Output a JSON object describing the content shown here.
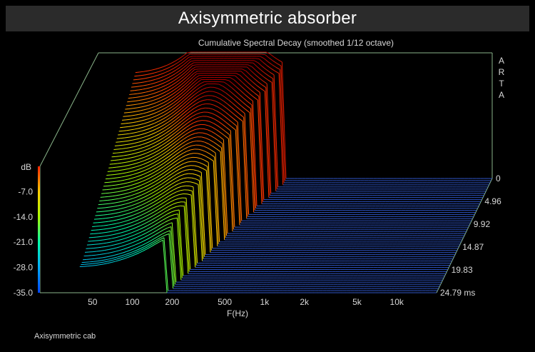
{
  "banner_title": "Axisymmetric absorber",
  "footer_label": "Axisymmetric cab",
  "watermark": [
    "A",
    "R",
    "T",
    "A"
  ],
  "chart_data": {
    "type": "waterfall",
    "title": "Cumulative Spectral Decay (smoothed 1/12 octave)",
    "xlabel": "F(Hz)",
    "ylabel": "dB",
    "x_scale": "log",
    "xlim": [
      20,
      20000
    ],
    "x_ticks": [
      50,
      100,
      200,
      500,
      1000,
      2000,
      5000,
      10000
    ],
    "x_tick_labels": [
      "50",
      "100",
      "200",
      "500",
      "1k",
      "2k",
      "5k",
      "10k"
    ],
    "ylim": [
      -35,
      0
    ],
    "y_ticks": [
      -7,
      -14,
      -21,
      -28,
      -35
    ],
    "y_tick_labels": [
      "-7.0",
      "-14.0",
      "-21.0",
      "-28.0",
      "-35.0"
    ],
    "time_unit": "ms",
    "time_range": [
      0,
      24.79
    ],
    "time_ticks": [
      0,
      4.96,
      9.92,
      14.87,
      19.83,
      24.79
    ],
    "time_tick_labels": [
      "0",
      "4.96",
      "9.92",
      "14.87",
      "19.83",
      "24.79 ms"
    ],
    "resonance_peak_hz": 200,
    "colormap": [
      "#0044ff",
      "#00aaff",
      "#00ffaa",
      "#aaff00",
      "#ffcc00",
      "#ff3300",
      "#b00000"
    ],
    "floor_color": "#2f56c9"
  }
}
